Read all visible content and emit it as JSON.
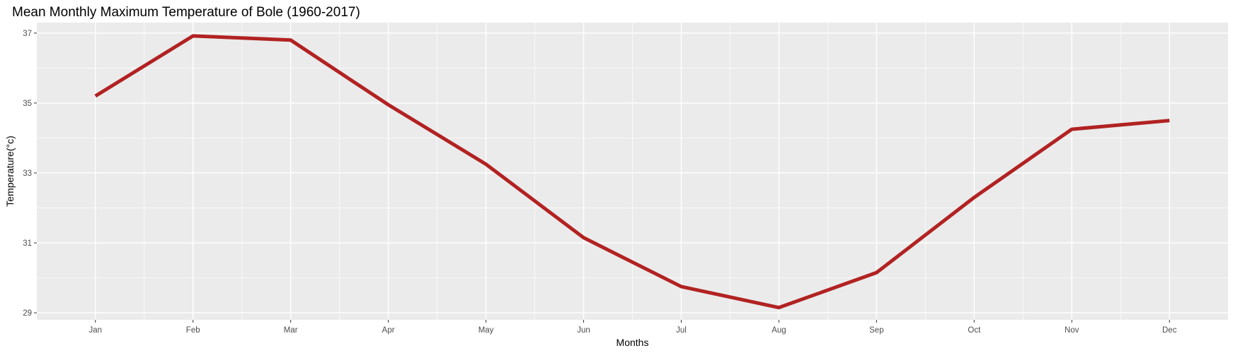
{
  "chart_data": {
    "type": "line",
    "title": "Mean Monthly Maximum Temperature  of Bole (1960-2017)",
    "xlabel": "Months",
    "ylabel": "Temperature(°c)",
    "categories": [
      "Jan",
      "Feb",
      "Mar",
      "Apr",
      "May",
      "Jun",
      "Jul",
      "Aug",
      "Sep",
      "Oct",
      "Nov",
      "Dec"
    ],
    "series": [
      {
        "values": [
          35.2,
          36.92,
          36.8,
          34.95,
          33.25,
          31.15,
          29.75,
          29.15,
          30.15,
          32.3,
          34.25,
          34.5
        ],
        "color": "#b22222"
      }
    ],
    "ylim": [
      28.8,
      37.3
    ],
    "yticks": [
      29,
      31,
      33,
      35,
      37
    ],
    "grid": true,
    "legend": "none",
    "colors": {
      "panel_background": "#ebebeb",
      "grid_major": "#ffffff",
      "line": "#b22222"
    }
  }
}
